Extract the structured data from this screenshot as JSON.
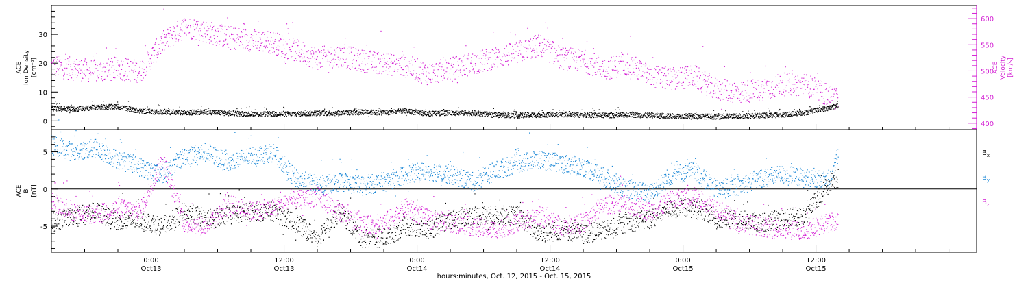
{
  "xaxis": {
    "label": "hours:minutes, Oct. 12, 2015 - Oct. 15, 2015",
    "ticks": [
      {
        "hours": 9,
        "time": "0:00",
        "day": "Oct13"
      },
      {
        "hours": 21,
        "time": "12:00",
        "day": "Oct13"
      },
      {
        "hours": 33,
        "time": "0:00",
        "day": "Oct14"
      },
      {
        "hours": 45,
        "time": "12:00",
        "day": "Oct14"
      },
      {
        "hours": 57,
        "time": "0:00",
        "day": "Oct15"
      },
      {
        "hours": 69,
        "time": "12:00",
        "day": "Oct15"
      }
    ]
  },
  "colors": {
    "black": "#000000",
    "magenta": "#d31ed3",
    "blue": "#1a87d6"
  },
  "chart_data": [
    {
      "type": "scatter",
      "panel": "plasma",
      "left_axis": {
        "label": [
          "ACE",
          "Ion Density",
          "[cm⁻³]"
        ],
        "ylim": [
          -3,
          40
        ],
        "ticks": [
          0,
          10,
          20,
          30
        ]
      },
      "right_axis": {
        "label": [
          "ACE",
          "Velocity",
          "[km/s]"
        ],
        "ylim": [
          388,
          625
        ],
        "ticks": [
          400,
          450,
          500,
          550,
          600
        ]
      },
      "series": [
        {
          "axis": "left",
          "color": "black",
          "x": [
            0,
            2,
            4,
            6,
            8,
            10,
            12,
            14,
            16,
            18,
            20,
            22,
            24,
            26,
            28,
            30,
            32,
            34,
            36,
            38,
            40,
            42,
            44,
            46,
            48,
            50,
            52,
            54,
            56,
            58,
            60,
            62,
            64,
            66,
            68,
            70,
            71
          ],
          "values": [
            4.5,
            4.2,
            4.8,
            5.0,
            3.5,
            3.2,
            3.0,
            3.2,
            2.8,
            2.5,
            2.5,
            2.5,
            2.8,
            2.8,
            3.2,
            3.0,
            3.5,
            2.6,
            3.0,
            2.8,
            2.2,
            2.0,
            2.2,
            2.4,
            2.2,
            2.0,
            2.3,
            2.0,
            1.8,
            1.8,
            1.6,
            1.8,
            2.0,
            2.2,
            3.0,
            4.5,
            5.5
          ]
        },
        {
          "axis": "right",
          "color": "magenta",
          "x": [
            0,
            2,
            4,
            6,
            8,
            10,
            12,
            14,
            16,
            18,
            20,
            22,
            24,
            26,
            28,
            30,
            32,
            34,
            36,
            38,
            40,
            42,
            44,
            46,
            48,
            50,
            52,
            54,
            56,
            58,
            60,
            62,
            64,
            66,
            68,
            70,
            71
          ],
          "values": [
            510,
            505,
            500,
            505,
            500,
            555,
            585,
            575,
            565,
            560,
            555,
            540,
            525,
            530,
            520,
            515,
            510,
            495,
            505,
            515,
            525,
            535,
            550,
            525,
            520,
            505,
            515,
            490,
            485,
            490,
            465,
            460,
            465,
            475,
            475,
            455,
            445
          ]
        }
      ]
    },
    {
      "type": "scatter",
      "panel": "magnetic",
      "left_axis": {
        "label": [
          "ACE",
          "B",
          "[nT]"
        ],
        "ylim": [
          -8.5,
          8
        ],
        "ticks": [
          -5,
          0,
          5
        ],
        "zero_line": true
      },
      "legend": [
        {
          "label": "B",
          "sub": "x",
          "color": "black"
        },
        {
          "label": "B",
          "sub": "y",
          "color": "blue"
        },
        {
          "label": "B",
          "sub": "z",
          "color": "magenta"
        }
      ],
      "series": [
        {
          "name": "Bx",
          "color": "black",
          "x": [
            0,
            2,
            4,
            6,
            8,
            10,
            12,
            14,
            16,
            18,
            20,
            22,
            24,
            26,
            28,
            30,
            32,
            34,
            36,
            38,
            40,
            42,
            44,
            46,
            48,
            50,
            52,
            54,
            56,
            58,
            60,
            62,
            64,
            66,
            68,
            70,
            71
          ],
          "values": [
            -4.5,
            -3.5,
            -3.0,
            -4.5,
            -4.0,
            -5.0,
            -3.0,
            -4.0,
            -3.5,
            -3.0,
            -3.0,
            -4.5,
            -6.5,
            -3.0,
            -6.5,
            -6.5,
            -5.0,
            -5.5,
            -4.0,
            -3.5,
            -3.5,
            -3.5,
            -6.0,
            -5.5,
            -6.0,
            -5.5,
            -4.5,
            -4.0,
            -2.5,
            -2.5,
            -4.0,
            -4.0,
            -4.5,
            -4.0,
            -3.5,
            0.5,
            1.5
          ]
        },
        {
          "name": "By",
          "color": "blue",
          "x": [
            0,
            2,
            4,
            6,
            8,
            10,
            12,
            14,
            16,
            18,
            20,
            22,
            24,
            26,
            28,
            30,
            32,
            34,
            36,
            38,
            40,
            42,
            44,
            46,
            48,
            50,
            52,
            54,
            56,
            58,
            60,
            62,
            64,
            66,
            68,
            70,
            71
          ],
          "values": [
            6.0,
            5.0,
            5.5,
            4.0,
            3.0,
            2.0,
            4.5,
            5.0,
            3.5,
            4.5,
            5.0,
            1.5,
            0.5,
            1.0,
            0.5,
            1.0,
            2.0,
            2.5,
            2.0,
            1.0,
            2.5,
            3.5,
            4.0,
            3.5,
            3.0,
            1.5,
            0.0,
            -0.5,
            2.0,
            2.5,
            0.0,
            0.5,
            1.5,
            2.0,
            1.5,
            1.0,
            4.5
          ]
        },
        {
          "name": "Bz",
          "color": "magenta",
          "x": [
            0,
            2,
            4,
            6,
            8,
            10,
            12,
            14,
            16,
            18,
            20,
            22,
            24,
            26,
            28,
            30,
            32,
            34,
            36,
            38,
            40,
            42,
            44,
            46,
            48,
            50,
            52,
            54,
            56,
            58,
            60,
            62,
            64,
            66,
            68,
            70,
            71
          ],
          "values": [
            -1.5,
            -3.0,
            -3.5,
            -2.5,
            -3.0,
            4.0,
            -4.5,
            -5.0,
            -2.0,
            -3.0,
            -2.5,
            -1.5,
            -1.0,
            -3.0,
            -5.0,
            -4.5,
            -2.5,
            -4.0,
            -4.5,
            -5.0,
            -5.5,
            -4.5,
            -3.5,
            -5.0,
            -4.5,
            -2.0,
            -2.0,
            -3.0,
            -1.5,
            -1.0,
            -2.5,
            -4.5,
            -5.0,
            -5.5,
            -5.5,
            -4.5,
            -4.5
          ]
        }
      ]
    }
  ]
}
